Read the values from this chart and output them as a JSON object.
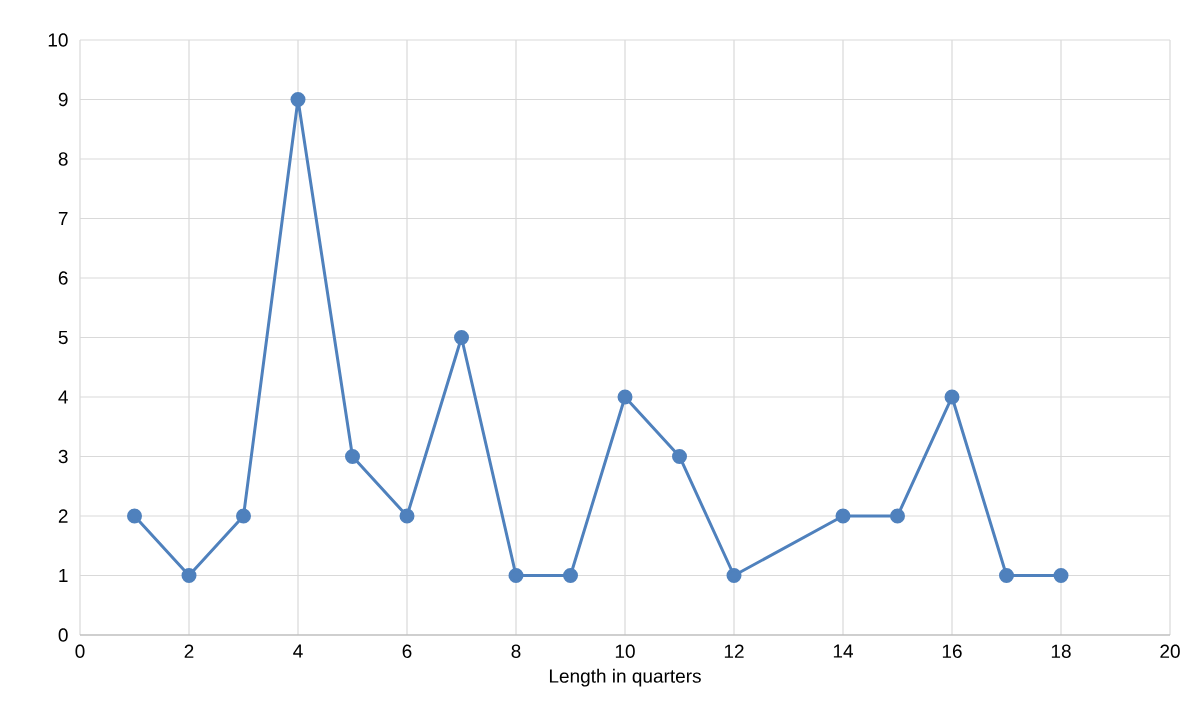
{
  "chart_data": {
    "type": "line",
    "xlabel": "Length in quarters",
    "series": [
      {
        "color": "#4f81bd",
        "x": [
          1,
          2,
          3,
          4,
          5,
          6,
          7,
          8,
          9,
          10,
          11,
          12,
          14,
          15,
          16,
          17,
          18
        ],
        "values": [
          2,
          1,
          2,
          9,
          3,
          2,
          5,
          1,
          1,
          4,
          3,
          1,
          2,
          2,
          4,
          1,
          1
        ]
      }
    ],
    "xlim": [
      0,
      20
    ],
    "xticks": [
      0,
      2,
      4,
      6,
      8,
      10,
      12,
      14,
      16,
      18,
      20
    ],
    "ylim": [
      0,
      10
    ],
    "yticks": [
      0,
      1,
      2,
      3,
      4,
      5,
      6,
      7,
      8,
      9,
      10
    ],
    "grid": true,
    "marker": "circle",
    "line_style": "solid"
  }
}
